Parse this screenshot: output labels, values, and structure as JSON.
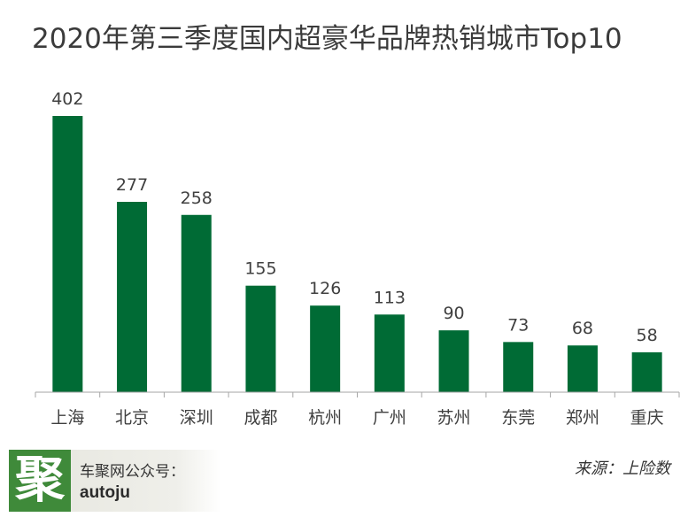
{
  "chart_data": {
    "type": "bar",
    "title": "2020年第三季度国内超豪华品牌热销城市Top10",
    "categories": [
      "上海",
      "北京",
      "深圳",
      "成都",
      "杭州",
      "广州",
      "苏州",
      "东莞",
      "郑州",
      "重庆"
    ],
    "values": [
      402,
      277,
      258,
      155,
      126,
      113,
      90,
      73,
      68,
      58
    ],
    "xlabel": "",
    "ylabel": "",
    "ylim": [
      0,
      402
    ],
    "bar_color": "#006b35",
    "grid": false,
    "legend": "none"
  },
  "footer": {
    "logo_glyph": "聚",
    "brand_label": "车聚网公众号：",
    "brand_id": "autoju",
    "source": "来源：上险数"
  }
}
